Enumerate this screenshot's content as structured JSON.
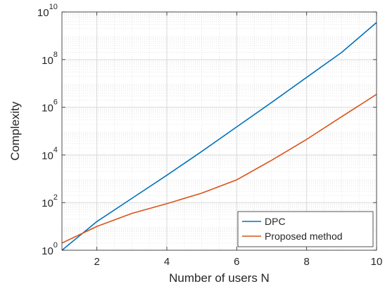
{
  "chart_data": {
    "type": "line",
    "title": "",
    "xlabel": "Number of users N",
    "ylabel": "Complexity",
    "xlim": [
      1,
      10
    ],
    "ylim": [
      1,
      10000000000
    ],
    "yscale": "log",
    "grid": true,
    "minor_grid": true,
    "legend_position": "bottom-right",
    "x_ticks": [
      2,
      4,
      6,
      8,
      10
    ],
    "x_tick_labels": [
      "2",
      "4",
      "6",
      "8",
      "10"
    ],
    "y_ticks": [
      1,
      100,
      10000,
      1000000,
      100000000,
      10000000000
    ],
    "y_tick_labels": [
      {
        "base": "10",
        "exp": "0"
      },
      {
        "base": "10",
        "exp": "2"
      },
      {
        "base": "10",
        "exp": "4"
      },
      {
        "base": "10",
        "exp": "6"
      },
      {
        "base": "10",
        "exp": "8"
      },
      {
        "base": "10",
        "exp": "10"
      }
    ],
    "x": [
      1,
      2,
      3,
      4,
      5,
      6,
      7,
      8,
      9,
      10
    ],
    "series": [
      {
        "name": "DPC",
        "color": "#0072BD",
        "values": [
          1,
          16,
          150,
          1400,
          14000,
          150000,
          1600000,
          18000000,
          200000000,
          3600000000
        ]
      },
      {
        "name": "Proposed method",
        "color": "#D95319",
        "values": [
          2,
          10,
          35,
          90,
          250,
          900,
          6000,
          45000,
          400000,
          3500000
        ]
      }
    ]
  }
}
